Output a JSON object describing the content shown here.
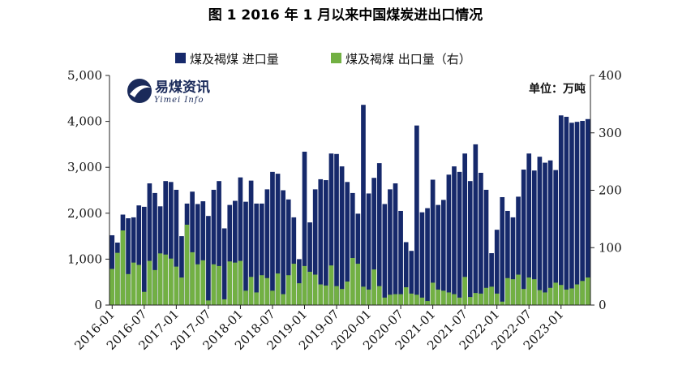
{
  "chart_data": {
    "type": "bar",
    "title": "图 1 2016 年 1 月以来中国煤炭进出口情况",
    "unit_label": "单位：万吨",
    "logo": {
      "name_cn": "易煤资讯",
      "name_en": "Yimei Info"
    },
    "colors": {
      "import": "#16296b",
      "export": "#72b043"
    },
    "legend": {
      "placement": "top-center"
    },
    "left_axis": {
      "ylim": [
        0,
        5000
      ],
      "ticks": [
        "0",
        "1,000",
        "2,000",
        "3,000",
        "4,000",
        "5,000"
      ]
    },
    "right_axis": {
      "ylim": [
        0,
        400
      ],
      "ticks": [
        "0",
        "100",
        "200",
        "300",
        "400"
      ]
    },
    "x_tick_labels": [
      "2016-01",
      "2016-07",
      "2017-01",
      "2017-07",
      "2018-01",
      "2018-07",
      "2019-01",
      "2019-07",
      "2020-01",
      "2020-07",
      "2021-01",
      "2021-07",
      "2022-01",
      "2022-07",
      "2023-01"
    ],
    "categories": [
      "2016-01",
      "2016-02",
      "2016-03",
      "2016-04",
      "2016-05",
      "2016-06",
      "2016-07",
      "2016-08",
      "2016-09",
      "2016-10",
      "2016-11",
      "2016-12",
      "2017-01",
      "2017-02",
      "2017-03",
      "2017-04",
      "2017-05",
      "2017-06",
      "2017-07",
      "2017-08",
      "2017-09",
      "2017-10",
      "2017-11",
      "2017-12",
      "2018-01",
      "2018-02",
      "2018-03",
      "2018-04",
      "2018-05",
      "2018-06",
      "2018-07",
      "2018-08",
      "2018-09",
      "2018-10",
      "2018-11",
      "2018-12",
      "2019-01",
      "2019-02",
      "2019-03",
      "2019-04",
      "2019-05",
      "2019-06",
      "2019-07",
      "2019-08",
      "2019-09",
      "2019-10",
      "2019-11",
      "2019-12",
      "2020-01",
      "2020-02",
      "2020-03",
      "2020-04",
      "2020-05",
      "2020-06",
      "2020-07",
      "2020-08",
      "2020-09",
      "2020-10",
      "2020-11",
      "2020-12",
      "2021-01",
      "2021-02",
      "2021-03",
      "2021-04",
      "2021-05",
      "2021-06",
      "2021-07",
      "2021-08",
      "2021-09",
      "2021-10",
      "2021-11",
      "2021-12",
      "2022-01",
      "2022-02",
      "2022-03",
      "2022-04",
      "2022-05",
      "2022-06",
      "2022-07",
      "2022-08",
      "2022-09",
      "2022-10",
      "2022-11",
      "2022-12",
      "2023-01",
      "2023-02",
      "2023-03",
      "2023-04",
      "2023-05",
      "2023-06"
    ],
    "series": [
      {
        "name": "煤及褐煤 进口量",
        "axis": "left",
        "values": [
          1520,
          1360,
          1970,
          1890,
          1910,
          2170,
          2140,
          2650,
          2440,
          2150,
          2700,
          2680,
          2510,
          1500,
          2210,
          2470,
          2200,
          2260,
          1940,
          2510,
          2700,
          1670,
          2180,
          2270,
          2780,
          2250,
          2710,
          2210,
          2210,
          2520,
          2900,
          2860,
          2500,
          2300,
          1910,
          1000,
          3340,
          1800,
          2520,
          2740,
          2720,
          3300,
          3290,
          3020,
          2680,
          2440,
          1990,
          4360,
          2430,
          2770,
          3090,
          2200,
          2520,
          2650,
          2050,
          1370,
          1180,
          3910,
          2020,
          2110,
          2730,
          2180,
          2290,
          2840,
          3020,
          2900,
          3300,
          2700,
          3500,
          2880,
          2510,
          1130,
          1640,
          2350,
          2050,
          1910,
          2360,
          2950,
          3300,
          2930,
          3230,
          3100,
          3150,
          2940,
          4130,
          4100,
          3970,
          3990,
          4010,
          4050
        ],
        "note": "10 kt"
      },
      {
        "name": "煤及褐煤 出口量（右）",
        "axis": "right",
        "values": [
          63,
          91,
          130,
          54,
          74,
          70,
          23,
          77,
          61,
          90,
          88,
          81,
          67,
          48,
          140,
          92,
          71,
          78,
          8,
          71,
          68,
          10,
          76,
          74,
          77,
          25,
          49,
          22,
          52,
          47,
          25,
          55,
          19,
          52,
          72,
          38,
          68,
          58,
          53,
          36,
          34,
          69,
          33,
          28,
          41,
          82,
          72,
          32,
          27,
          62,
          33,
          13,
          18,
          19,
          19,
          31,
          20,
          18,
          13,
          7,
          39,
          27,
          25,
          22,
          19,
          13,
          49,
          14,
          21,
          20,
          30,
          32,
          20,
          6,
          47,
          45,
          53,
          28,
          48,
          45,
          26,
          22,
          30,
          39,
          35,
          27,
          29,
          36,
          42,
          48
        ],
        "note": "10 kt"
      }
    ]
  }
}
